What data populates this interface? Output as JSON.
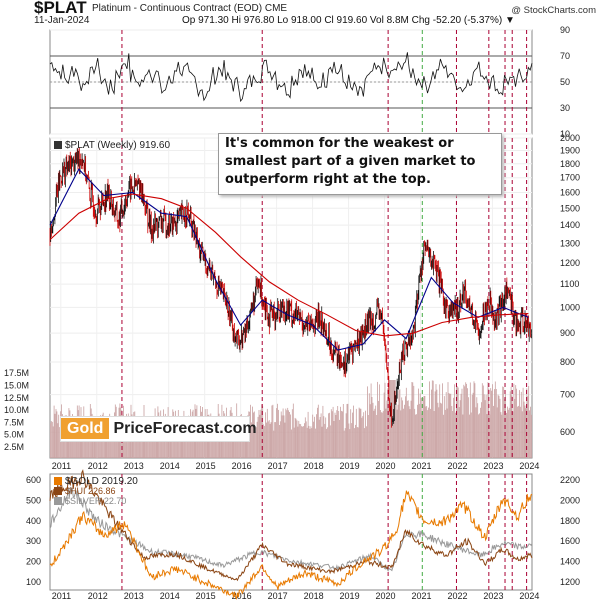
{
  "header": {
    "symbol": "$PLAT",
    "description": "Platinum - Continuous Contract (EOD)  CME",
    "date": "11-Jan-2024",
    "ohlc": "Op 971.30  Hi 976.80  Lo 918.00  Cl 919.60  Vol 8.8M  Chg -52.20 (-5.37%) ▼",
    "credit": "@ StockCharts.com"
  },
  "annotation": "It's common for the weakest or smallest part of a given market to outperform right at the top.",
  "logo": {
    "gold": "Gold",
    "rest": "PriceForecast.com"
  },
  "colors": {
    "up": "#111111",
    "down": "#cc0000",
    "ma_blue": "#00008b",
    "ma_red": "#cc0000",
    "vline_red": "#aa0033",
    "vline_green": "#44aa44",
    "gold": "#e87a00",
    "hui": "#8b4513",
    "silver": "#999999",
    "volume": "#c8a0a0"
  },
  "chart_data": [
    {
      "name": "rsi",
      "type": "line",
      "ylim": [
        10,
        90
      ],
      "yticks": [
        10,
        30,
        50,
        70,
        90
      ],
      "ref_lines": [
        30,
        70
      ],
      "values": [
        64,
        58,
        52,
        60,
        48,
        55,
        62,
        50,
        45,
        58,
        66,
        54,
        48,
        60,
        56,
        44,
        50,
        62,
        58,
        52,
        46,
        40,
        55,
        60,
        52,
        48,
        42,
        50,
        56,
        62,
        58,
        50,
        45,
        53,
        60,
        55,
        48,
        52,
        64,
        58,
        50,
        44,
        40,
        52,
        58,
        62,
        55,
        60,
        66,
        58,
        52,
        48,
        56,
        62,
        58,
        50,
        46,
        54,
        60,
        56,
        50,
        44,
        52,
        48,
        56,
        58
      ]
    },
    {
      "name": "plat",
      "type": "candlestick",
      "title": "$PLAT (Weekly) 919.60",
      "x_range": [
        2010.7,
        2024.1
      ],
      "ylim": [
        540,
        2000
      ],
      "log": true,
      "yticks": [
        600,
        700,
        800,
        900,
        1000,
        1100,
        1200,
        1300,
        1400,
        1500,
        1600,
        1700,
        1800,
        1900,
        2000
      ],
      "xticks": [
        "2011",
        "2012",
        "2013",
        "2014",
        "2015",
        "2016",
        "2017",
        "2018",
        "2019",
        "2020",
        "2021",
        "2022",
        "2023",
        "2024"
      ],
      "close": [
        {
          "x": 2010.7,
          "y": 1350
        },
        {
          "x": 2011.0,
          "y": 1720
        },
        {
          "x": 2011.3,
          "y": 1800
        },
        {
          "x": 2011.6,
          "y": 1860
        },
        {
          "x": 2011.8,
          "y": 1600
        },
        {
          "x": 2012.0,
          "y": 1480
        },
        {
          "x": 2012.3,
          "y": 1600
        },
        {
          "x": 2012.6,
          "y": 1420
        },
        {
          "x": 2012.9,
          "y": 1620
        },
        {
          "x": 2013.2,
          "y": 1650
        },
        {
          "x": 2013.5,
          "y": 1380
        },
        {
          "x": 2013.8,
          "y": 1420
        },
        {
          "x": 2014.1,
          "y": 1400
        },
        {
          "x": 2014.5,
          "y": 1480
        },
        {
          "x": 2014.9,
          "y": 1240
        },
        {
          "x": 2015.2,
          "y": 1150
        },
        {
          "x": 2015.6,
          "y": 1020
        },
        {
          "x": 2015.9,
          "y": 870
        },
        {
          "x": 2016.1,
          "y": 890
        },
        {
          "x": 2016.5,
          "y": 1100
        },
        {
          "x": 2016.8,
          "y": 960
        },
        {
          "x": 2017.2,
          "y": 1000
        },
        {
          "x": 2017.6,
          "y": 960
        },
        {
          "x": 2017.9,
          "y": 920
        },
        {
          "x": 2018.2,
          "y": 960
        },
        {
          "x": 2018.6,
          "y": 830
        },
        {
          "x": 2018.9,
          "y": 800
        },
        {
          "x": 2019.3,
          "y": 880
        },
        {
          "x": 2019.6,
          "y": 950
        },
        {
          "x": 2019.9,
          "y": 980
        },
        {
          "x": 2020.2,
          "y": 620
        },
        {
          "x": 2020.5,
          "y": 830
        },
        {
          "x": 2020.8,
          "y": 900
        },
        {
          "x": 2021.1,
          "y": 1280
        },
        {
          "x": 2021.4,
          "y": 1180
        },
        {
          "x": 2021.7,
          "y": 1000
        },
        {
          "x": 2022.0,
          "y": 980
        },
        {
          "x": 2022.2,
          "y": 1080
        },
        {
          "x": 2022.6,
          "y": 900
        },
        {
          "x": 2022.9,
          "y": 1040
        },
        {
          "x": 2023.1,
          "y": 950
        },
        {
          "x": 2023.4,
          "y": 1080
        },
        {
          "x": 2023.7,
          "y": 920
        },
        {
          "x": 2023.9,
          "y": 950
        },
        {
          "x": 2024.0,
          "y": 920
        }
      ],
      "ma_short": [
        {
          "x": 2010.7,
          "y": 1400
        },
        {
          "x": 2011.5,
          "y": 1760
        },
        {
          "x": 2012.2,
          "y": 1580
        },
        {
          "x": 2013.0,
          "y": 1600
        },
        {
          "x": 2013.8,
          "y": 1470
        },
        {
          "x": 2014.5,
          "y": 1450
        },
        {
          "x": 2015.3,
          "y": 1120
        },
        {
          "x": 2016.0,
          "y": 930
        },
        {
          "x": 2016.6,
          "y": 1030
        },
        {
          "x": 2017.3,
          "y": 970
        },
        {
          "x": 2018.0,
          "y": 930
        },
        {
          "x": 2018.7,
          "y": 840
        },
        {
          "x": 2019.4,
          "y": 860
        },
        {
          "x": 2020.0,
          "y": 950
        },
        {
          "x": 2020.6,
          "y": 880
        },
        {
          "x": 2021.3,
          "y": 1130
        },
        {
          "x": 2021.9,
          "y": 1020
        },
        {
          "x": 2022.6,
          "y": 960
        },
        {
          "x": 2023.3,
          "y": 1000
        },
        {
          "x": 2024.0,
          "y": 960
        }
      ],
      "ma_long": [
        {
          "x": 2010.7,
          "y": 1320
        },
        {
          "x": 2011.5,
          "y": 1470
        },
        {
          "x": 2012.3,
          "y": 1560
        },
        {
          "x": 2013.0,
          "y": 1590
        },
        {
          "x": 2013.8,
          "y": 1560
        },
        {
          "x": 2014.5,
          "y": 1500
        },
        {
          "x": 2015.3,
          "y": 1360
        },
        {
          "x": 2016.0,
          "y": 1230
        },
        {
          "x": 2016.8,
          "y": 1110
        },
        {
          "x": 2017.6,
          "y": 1030
        },
        {
          "x": 2018.4,
          "y": 970
        },
        {
          "x": 2019.2,
          "y": 910
        },
        {
          "x": 2020.0,
          "y": 890
        },
        {
          "x": 2020.8,
          "y": 900
        },
        {
          "x": 2021.6,
          "y": 940
        },
        {
          "x": 2022.4,
          "y": 960
        },
        {
          "x": 2023.2,
          "y": 970
        },
        {
          "x": 2024.0,
          "y": 975
        }
      ],
      "volume_labels": [
        "2.5M",
        "5.0M",
        "7.5M",
        "10.0M",
        "12.5M",
        "15.0M",
        "17.5M"
      ],
      "marker_lines": {
        "red": [
          2012.7,
          2016.6,
          2020.1,
          2022.0,
          2022.9,
          2023.35,
          2023.55,
          2023.95
        ],
        "green": [
          2021.05
        ]
      }
    },
    {
      "name": "gold",
      "type": "line",
      "title": "$GOLD 2019.20",
      "legend": [
        "$HUI 226.86",
        "$SILVER 22.70"
      ],
      "left_ticks": [
        100,
        200,
        300,
        400,
        500,
        600
      ],
      "right_ticks": [
        1200,
        1400,
        1600,
        1800,
        2000,
        2200
      ],
      "series": [
        {
          "name": "$GOLD",
          "values": [
            {
              "x": 2010.7,
              "y": 1340
            },
            {
              "x": 2011.6,
              "y": 1850
            },
            {
              "x": 2012.2,
              "y": 1660
            },
            {
              "x": 2012.8,
              "y": 1780
            },
            {
              "x": 2013.5,
              "y": 1250
            },
            {
              "x": 2014.2,
              "y": 1330
            },
            {
              "x": 2015.0,
              "y": 1200
            },
            {
              "x": 2015.9,
              "y": 1060
            },
            {
              "x": 2016.6,
              "y": 1360
            },
            {
              "x": 2017.0,
              "y": 1150
            },
            {
              "x": 2017.8,
              "y": 1290
            },
            {
              "x": 2018.7,
              "y": 1180
            },
            {
              "x": 2019.4,
              "y": 1400
            },
            {
              "x": 2019.9,
              "y": 1500
            },
            {
              "x": 2020.3,
              "y": 1680
            },
            {
              "x": 2020.6,
              "y": 2060
            },
            {
              "x": 2021.1,
              "y": 1800
            },
            {
              "x": 2021.6,
              "y": 1780
            },
            {
              "x": 2022.2,
              "y": 1950
            },
            {
              "x": 2022.8,
              "y": 1630
            },
            {
              "x": 2023.3,
              "y": 2020
            },
            {
              "x": 2023.7,
              "y": 1840
            },
            {
              "x": 2024.0,
              "y": 2030
            }
          ]
        },
        {
          "name": "$HUI",
          "values": [
            {
              "x": 2010.7,
              "y": 520
            },
            {
              "x": 2011.6,
              "y": 620
            },
            {
              "x": 2012.4,
              "y": 420
            },
            {
              "x": 2013.3,
              "y": 220
            },
            {
              "x": 2014.2,
              "y": 240
            },
            {
              "x": 2015.0,
              "y": 170
            },
            {
              "x": 2015.9,
              "y": 110
            },
            {
              "x": 2016.6,
              "y": 280
            },
            {
              "x": 2017.3,
              "y": 190
            },
            {
              "x": 2018.5,
              "y": 150
            },
            {
              "x": 2019.5,
              "y": 200
            },
            {
              "x": 2020.2,
              "y": 170
            },
            {
              "x": 2020.6,
              "y": 350
            },
            {
              "x": 2021.1,
              "y": 280
            },
            {
              "x": 2021.7,
              "y": 230
            },
            {
              "x": 2022.3,
              "y": 300
            },
            {
              "x": 2022.8,
              "y": 190
            },
            {
              "x": 2023.3,
              "y": 260
            },
            {
              "x": 2023.7,
              "y": 210
            },
            {
              "x": 2024.0,
              "y": 230
            }
          ]
        },
        {
          "name": "$SILVER",
          "values": [
            {
              "x": 2010.7,
              "y": 380
            },
            {
              "x": 2011.3,
              "y": 560
            },
            {
              "x": 2012.0,
              "y": 400
            },
            {
              "x": 2013.5,
              "y": 250
            },
            {
              "x": 2014.5,
              "y": 230
            },
            {
              "x": 2015.5,
              "y": 180
            },
            {
              "x": 2016.5,
              "y": 250
            },
            {
              "x": 2017.5,
              "y": 200
            },
            {
              "x": 2018.7,
              "y": 170
            },
            {
              "x": 2019.6,
              "y": 230
            },
            {
              "x": 2020.2,
              "y": 150
            },
            {
              "x": 2020.6,
              "y": 340
            },
            {
              "x": 2021.1,
              "y": 330
            },
            {
              "x": 2021.8,
              "y": 280
            },
            {
              "x": 2022.7,
              "y": 230
            },
            {
              "x": 2023.3,
              "y": 290
            },
            {
              "x": 2023.8,
              "y": 270
            },
            {
              "x": 2024.0,
              "y": 280
            }
          ]
        }
      ],
      "marker_lines": {
        "red": [
          2012.7,
          2016.6,
          2020.1,
          2022.0,
          2022.9,
          2023.35,
          2023.55,
          2023.95
        ],
        "green": [
          2021.05
        ]
      }
    }
  ]
}
